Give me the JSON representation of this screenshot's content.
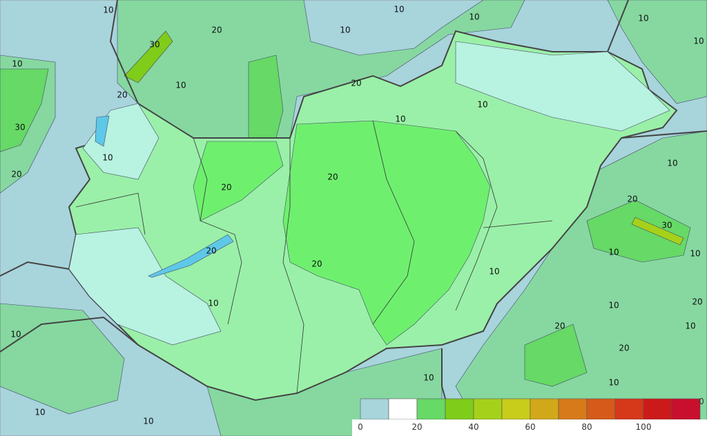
{
  "contour_labels": [
    "10",
    "10",
    "10",
    "10",
    "10",
    "10",
    "20",
    "30",
    "10",
    "10",
    "20",
    "20",
    "10",
    "10",
    "30",
    "20",
    "10",
    "20",
    "20",
    "10",
    "20",
    "30",
    "10",
    "10",
    "20",
    "20",
    "10",
    "10",
    "10",
    "20",
    "20",
    "10",
    "10",
    "20",
    "10",
    "10",
    "10",
    "10"
  ],
  "legend": {
    "labels": [
      "0",
      "20",
      "40",
      "60",
      "80",
      "100",
      "0"
    ],
    "colors": [
      "#a8d4dc",
      "#ffffff",
      "#66d966",
      "#7fcc1a",
      "#a6d11a",
      "#c8cc1a",
      "#d1a81a",
      "#d67a1a",
      "#d65a1a",
      "#d6381a",
      "#cc1a1a",
      "#c8102e"
    ]
  }
}
